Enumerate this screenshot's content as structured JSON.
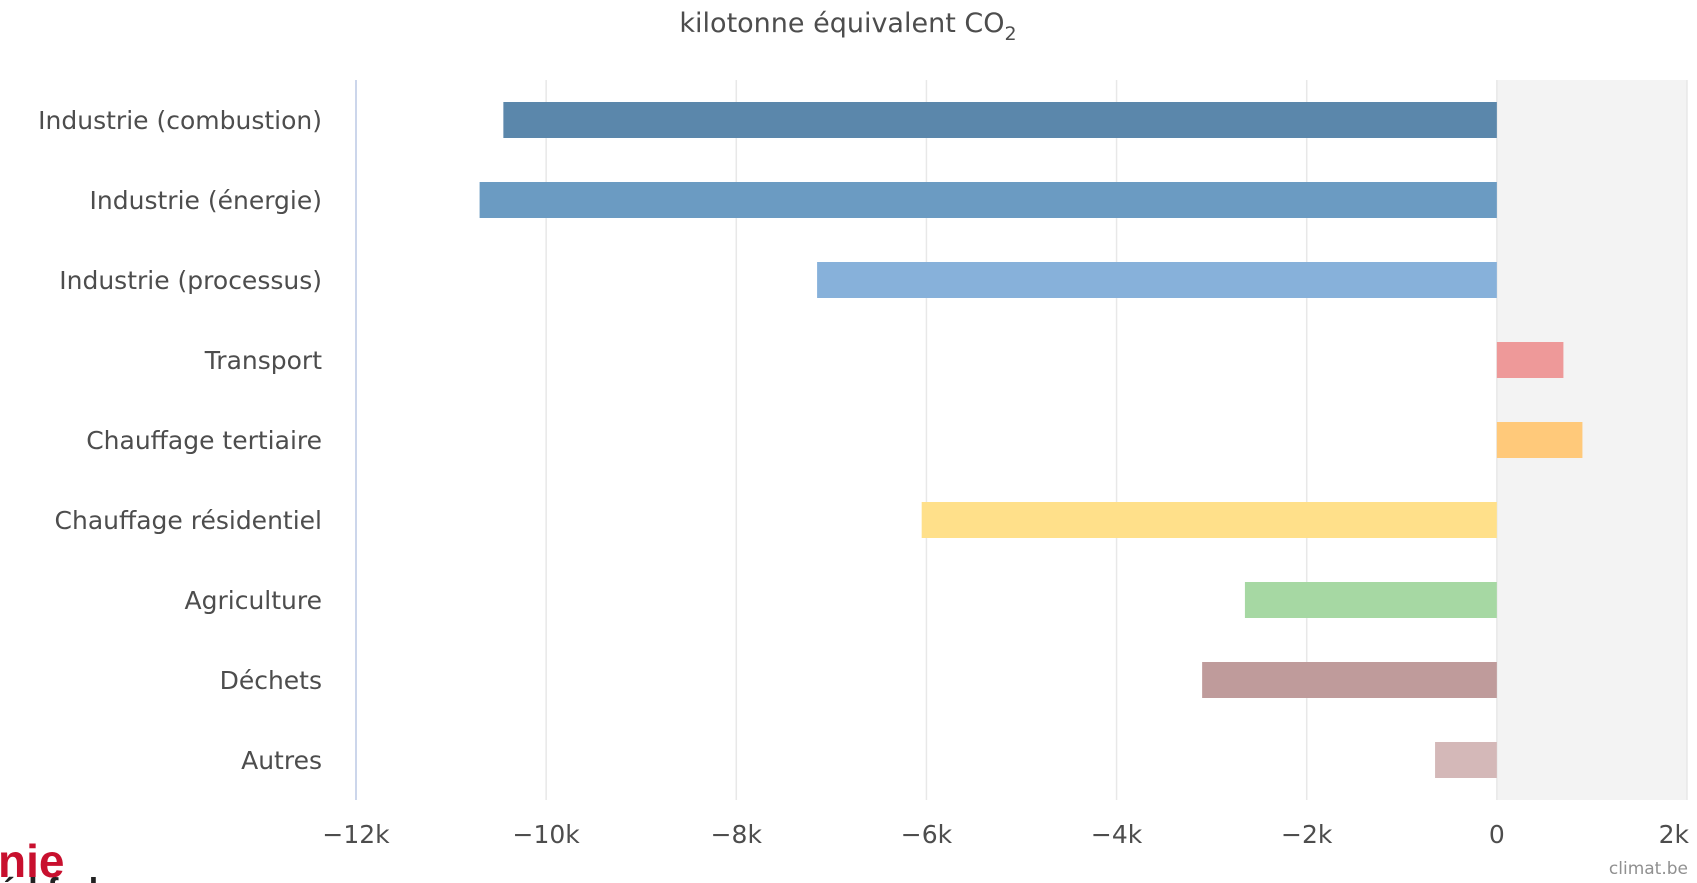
{
  "chart_data": {
    "type": "bar",
    "orientation": "horizontal",
    "title_main": "kilotonne équivalent CO",
    "title_sub": "2",
    "categories": [
      "Industrie (combustion)",
      "Industrie (énergie)",
      "Industrie (processus)",
      "Transport",
      "Chauffage tertiaire",
      "Chauffage résidentiel",
      "Agriculture",
      "Déchets",
      "Autres"
    ],
    "values": [
      -10450,
      -10700,
      -7150,
      700,
      900,
      -6050,
      -2650,
      -3100,
      -650
    ],
    "colors": [
      "#5b87ab",
      "#6b9bc2",
      "#87b1da",
      "#ee9999",
      "#ffc97a",
      "#ffe08a",
      "#a6d8a3",
      "#bf9b9b",
      "#d4b8b8"
    ],
    "xlim": [
      -12000,
      2000
    ],
    "xticks": [
      -12000,
      -10000,
      -8000,
      -6000,
      -4000,
      -2000,
      0,
      2000
    ],
    "xtick_labels": [
      "−12k",
      "−10k",
      "−8k",
      "−6k",
      "−4k",
      "−2k",
      "0",
      "2k"
    ],
    "grid": true,
    "highlight_band": [
      0,
      2000
    ],
    "credit": "climat.be"
  },
  "logo": {
    "line1": "nie",
    "line2": "éd fed"
  }
}
